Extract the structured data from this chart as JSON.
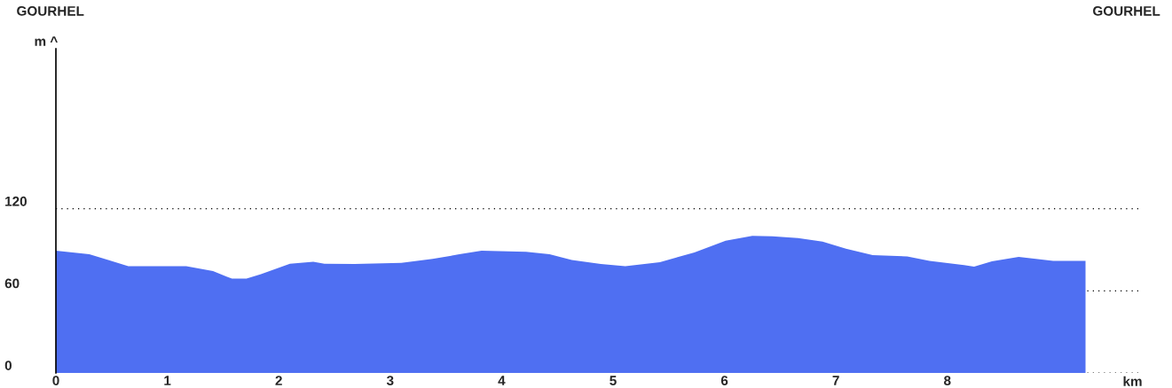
{
  "chart_data": {
    "type": "area",
    "annotations": [
      "GOURHEL",
      "GOURHEL"
    ],
    "xlabel": "km",
    "ylabel": "m ^",
    "color": "#4f6ff2",
    "x": [
      0,
      0.3,
      0.47,
      0.65,
      1.17,
      1.41,
      1.58,
      1.71,
      1.84,
      2.1,
      2.31,
      2.41,
      2.68,
      3.1,
      3.38,
      3.62,
      3.82,
      4.22,
      4.43,
      4.63,
      4.89,
      5.11,
      5.42,
      5.73,
      6.01,
      6.25,
      6.43,
      6.66,
      6.88,
      7.09,
      7.33,
      7.64,
      7.84,
      8.15,
      8.24,
      8.4,
      8.64,
      8.95,
      9.24
    ],
    "values": [
      89.4,
      86.7,
      82.6,
      78,
      78,
      74.4,
      68.9,
      68.9,
      72.2,
      79.8,
      81.2,
      79.8,
      79.6,
      80.5,
      83.4,
      86.7,
      89.4,
      88.6,
      86.7,
      82.6,
      79.6,
      78,
      81,
      88.1,
      96.6,
      100.2,
      99.9,
      98.6,
      96,
      90.9,
      86.1,
      85.2,
      81.9,
      78.8,
      77.7,
      81.6,
      84.9,
      81.9,
      81.9
    ],
    "xlim": [
      0,
      9.75
    ],
    "ylim": [
      0,
      237
    ],
    "xticks": [
      0,
      1,
      2,
      3,
      4,
      5,
      6,
      7,
      8
    ],
    "yticks": [
      0,
      60,
      120
    ],
    "grid": "y"
  }
}
